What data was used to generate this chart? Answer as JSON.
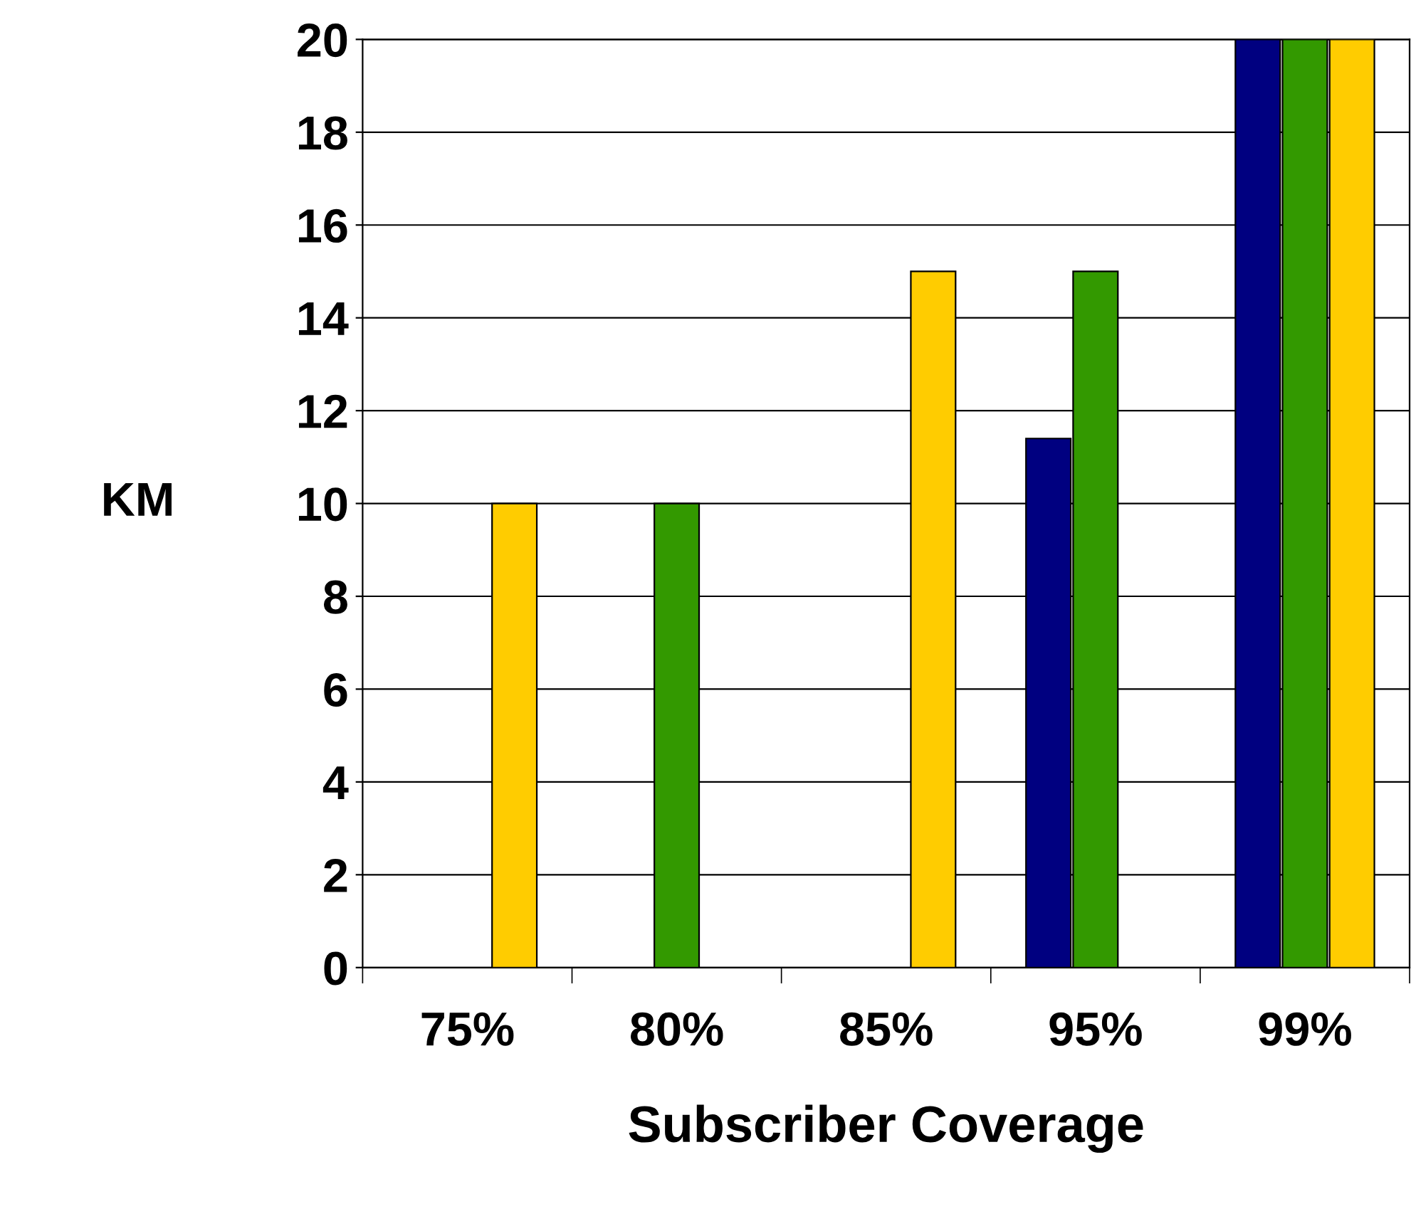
{
  "chart_data": {
    "type": "bar",
    "xlabel": "Subscriber Coverage",
    "ylabel": "KM",
    "categories": [
      "75%",
      "80%",
      "85%",
      "95%",
      "99%"
    ],
    "series": [
      {
        "color": "#000080",
        "values": [
          null,
          null,
          null,
          11.4,
          20
        ]
      },
      {
        "color": "#339900",
        "values": [
          null,
          10,
          null,
          15,
          20
        ]
      },
      {
        "color": "#ffcc00",
        "values": [
          10,
          null,
          15,
          null,
          20
        ]
      }
    ],
    "ylim": [
      0,
      20
    ],
    "yticks": [
      0,
      2,
      4,
      6,
      8,
      10,
      12,
      14,
      16,
      18,
      20
    ],
    "grid": "y",
    "legend": false
  }
}
